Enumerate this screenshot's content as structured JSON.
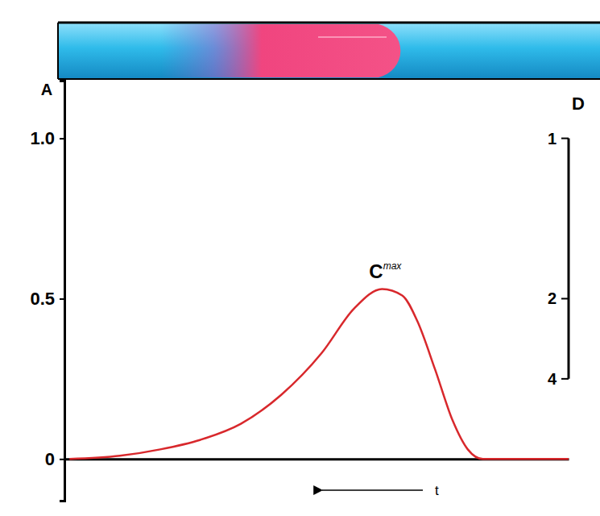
{
  "chart_data": {
    "type": "line",
    "x_label": "t",
    "y_label": "A",
    "y2_label": "D",
    "x": [
      1,
      11,
      19,
      27,
      35,
      43,
      51,
      57.5,
      63,
      67,
      70,
      73.5,
      77,
      80,
      83,
      100
    ],
    "values": [
      0,
      0.01,
      0.03,
      0.06,
      0.11,
      0.2,
      0.33,
      0.47,
      0.53,
      0.51,
      0.43,
      0.28,
      0.12,
      0.03,
      0,
      0
    ],
    "color": "#d8282c",
    "xlim": [
      0,
      100
    ],
    "ylim": [
      -0.13,
      1.18
    ],
    "yticks": [
      0,
      0.5,
      {
        "value": 1,
        "label": "1.0"
      }
    ],
    "y2lim": [
      1,
      4
    ],
    "y2ticks": [
      1,
      2,
      4
    ],
    "tick_labels": "y",
    "grid": false,
    "annotations": [
      {
        "text": "C",
        "superscript": "max"
      }
    ]
  }
}
